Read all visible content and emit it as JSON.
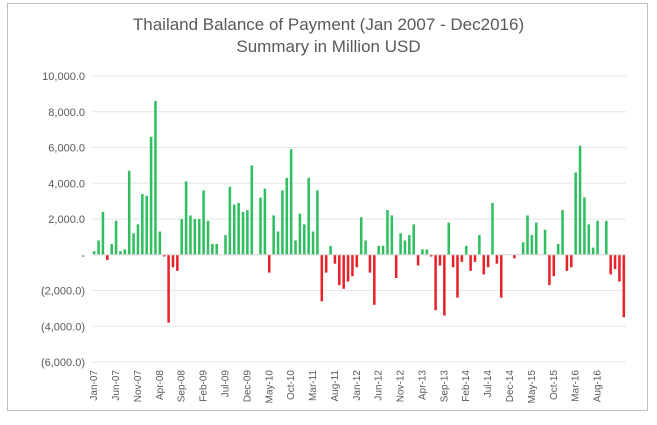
{
  "chart_data": {
    "type": "bar",
    "title": "Thailand Balance of Payment (Jan 2007 - Dec2016)",
    "subtitle": "Summary in Million USD",
    "xlabel": "",
    "ylabel": "",
    "ylim": [
      -6000,
      10000
    ],
    "yticks": [
      10000,
      8000,
      6000,
      4000,
      2000,
      0,
      -2000,
      -4000,
      -6000
    ],
    "ytick_labels": [
      "10,000.0",
      "8,000.0",
      "6,000.0",
      "4,000.0",
      "2,000.0",
      "-",
      "(2,000.0)",
      "(4,000.0)",
      "(6,000.0)"
    ],
    "grid": true,
    "legend": "none",
    "positive_color": "#2fbf5f",
    "negative_color": "#e8222a",
    "xtick_labels": [
      "Jan-07",
      "Jun-07",
      "Nov-07",
      "Apr-08",
      "Sep-08",
      "Feb-09",
      "Jul-09",
      "Dec-09",
      "May-10",
      "Oct-10",
      "Mar-11",
      "Aug-11",
      "Jan-12",
      "Jun-12",
      "Nov-12",
      "Apr-13",
      "Sep-13",
      "Feb-14",
      "Jul-14",
      "Dec-14",
      "May-15",
      "Oct-15",
      "Mar-16",
      "Aug-16"
    ],
    "categories_start": "Jan-07",
    "categories_end": "Dec-16",
    "values": [
      200,
      800,
      2400,
      -300,
      600,
      1900,
      200,
      300,
      4700,
      1200,
      1700,
      3400,
      3300,
      6600,
      8600,
      1300,
      -100,
      -3800,
      -700,
      -900,
      2000,
      4100,
      2200,
      2000,
      2000,
      3600,
      1900,
      600,
      600,
      0,
      1100,
      3800,
      2800,
      2900,
      2400,
      2500,
      5000,
      0,
      3200,
      3700,
      -1000,
      2200,
      1300,
      3600,
      4300,
      5900,
      800,
      2300,
      1700,
      4300,
      1300,
      3600,
      -2600,
      -1000,
      500,
      -500,
      -1700,
      -1900,
      -1500,
      -1200,
      -700,
      2100,
      800,
      -1000,
      -2800,
      500,
      500,
      2500,
      2200,
      -1300,
      1200,
      800,
      1100,
      1700,
      -600,
      300,
      300,
      -100,
      -3100,
      -600,
      -3400,
      1800,
      -700,
      -2400,
      -400,
      500,
      -900,
      -400,
      1100,
      -1100,
      -700,
      2900,
      -500,
      -2400,
      0,
      0,
      -200,
      0,
      700,
      2200,
      1100,
      1800,
      0,
      1400,
      -1700,
      -1200,
      600,
      2500,
      -900,
      -700,
      4600,
      6100,
      3200,
      1700,
      400,
      1900,
      0,
      1900,
      -1100,
      -800,
      -1500,
      -3500
    ]
  }
}
